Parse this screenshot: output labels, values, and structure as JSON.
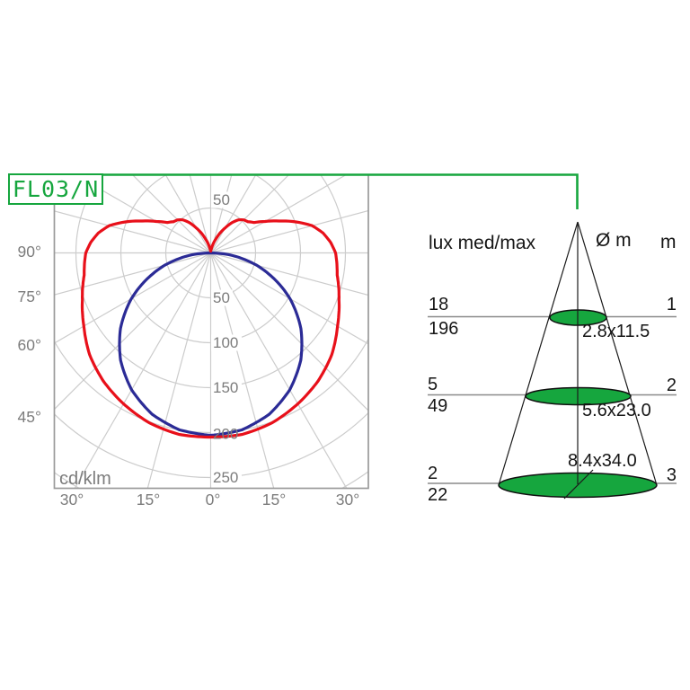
{
  "product": {
    "code": "FL03/N"
  },
  "colors": {
    "accent_green": "#16a63e",
    "curve_red": "#e8101a",
    "curve_blue": "#2b2b96",
    "grid": "#cccccc",
    "frame": "#9a9a9a",
    "muted_text": "#7c7c7c",
    "text": "#161616",
    "table_line": "#8a8a8a",
    "cone_line": "#1a1a1a"
  },
  "chart_data": [
    {
      "type": "polar",
      "name": "luminous-intensity-distribution",
      "unit_label": "cd/klm",
      "radial_axis": {
        "min": 0,
        "max": 250,
        "step": 50,
        "tick_labels_above": [
          "50"
        ],
        "tick_labels_below": [
          "50",
          "100",
          "150",
          "200",
          "250"
        ],
        "grid_rings": [
          50,
          100,
          150,
          200,
          250,
          300
        ]
      },
      "angle_grid_step_deg": 15,
      "angle_labels": {
        "left": [
          "90°",
          "75°",
          "60°",
          "45°"
        ],
        "bottom": [
          "30°",
          "15°",
          "0°",
          "15°",
          "30°"
        ]
      },
      "series": [
        {
          "name": "wide-plane-curve",
          "color_key": "curve_red",
          "symmetric": true,
          "samples_deg_r": [
            [
              0,
              205
            ],
            [
              10,
              205
            ],
            [
              20,
              201
            ],
            [
              30,
              194
            ],
            [
              40,
              186
            ],
            [
              50,
              176
            ],
            [
              60,
              163
            ],
            [
              70,
              152
            ],
            [
              80,
              143
            ],
            [
              90,
              139
            ],
            [
              95,
              134
            ],
            [
              100,
              127
            ],
            [
              105,
              117
            ],
            [
              110,
              101
            ],
            [
              115,
              84
            ],
            [
              120,
              70
            ],
            [
              125,
              59
            ],
            [
              130,
              54
            ],
            [
              135,
              52
            ],
            [
              140,
              48
            ],
            [
              145,
              41
            ],
            [
              150,
              32
            ],
            [
              155,
              24
            ],
            [
              160,
              16
            ],
            [
              165,
              10
            ],
            [
              170,
              5
            ],
            [
              175,
              3
            ],
            [
              180,
              2
            ]
          ]
        },
        {
          "name": "narrow-plane-curve",
          "color_key": "curve_blue",
          "symmetric": true,
          "samples_deg_r": [
            [
              0,
              203
            ],
            [
              10,
              200
            ],
            [
              20,
              191
            ],
            [
              30,
              176
            ],
            [
              40,
              156
            ],
            [
              50,
              131
            ],
            [
              60,
              102
            ],
            [
              70,
              69
            ],
            [
              75,
              53
            ],
            [
              80,
              35
            ],
            [
              85,
              18
            ],
            [
              90,
              0
            ]
          ]
        }
      ]
    },
    {
      "type": "table",
      "name": "cone-illuminance",
      "headers": {
        "lux": "lux med/max",
        "diameter": "Ø m",
        "distance": "m"
      },
      "rows": [
        {
          "lux_med": "18",
          "lux_max": "196",
          "beam_size": "2.8x11.5",
          "distance_m": "1"
        },
        {
          "lux_med": "5",
          "lux_max": "49",
          "beam_size": "5.6x23.0",
          "distance_m": "2"
        },
        {
          "lux_med": "2",
          "lux_max": "22",
          "beam_size": "8.4x34.0",
          "distance_m": "3"
        }
      ]
    }
  ]
}
